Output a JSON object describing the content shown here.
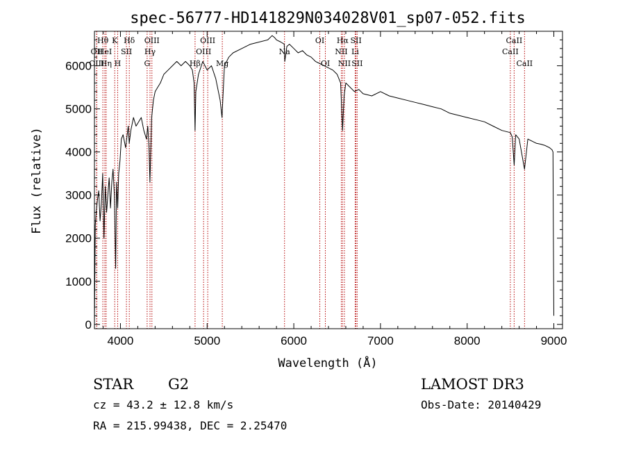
{
  "chart_data": {
    "type": "line",
    "title": "spec-56777-HD141829N034028V01_sp07-052.fits",
    "xlabel": "Wavelength (Å)",
    "ylabel": "Flux (relative)",
    "xlim": [
      3700,
      9100
    ],
    "ylim": [
      -100,
      6800
    ],
    "xticks": [
      4000,
      5000,
      6000,
      7000,
      8000,
      9000
    ],
    "yticks": [
      0,
      1000,
      2000,
      3000,
      4000,
      5000,
      6000
    ],
    "grid": false,
    "series": [
      {
        "color": "#000000",
        "x": [
          3700,
          3710,
          3720,
          3735,
          3750,
          3765,
          3780,
          3795,
          3810,
          3825,
          3840,
          3855,
          3870,
          3885,
          3900,
          3915,
          3930,
          3945,
          3955,
          3968,
          3980,
          3995,
          4010,
          4030,
          4060,
          4090,
          4101,
          4120,
          4150,
          4180,
          4210,
          4240,
          4270,
          4300,
          4315,
          4330,
          4340,
          4360,
          4380,
          4400,
          4430,
          4460,
          4500,
          4550,
          4600,
          4650,
          4700,
          4750,
          4800,
          4830,
          4850,
          4861,
          4870,
          4900,
          4950,
          5000,
          5050,
          5100,
          5150,
          5172,
          5183,
          5200,
          5250,
          5300,
          5400,
          5500,
          5600,
          5700,
          5750,
          5780,
          5800,
          5850,
          5890,
          5896,
          5920,
          5950,
          6000,
          6050,
          6100,
          6150,
          6200,
          6250,
          6300,
          6350,
          6400,
          6450,
          6500,
          6540,
          6563,
          6580,
          6600,
          6650,
          6700,
          6750,
          6800,
          6900,
          7000,
          7100,
          7200,
          7300,
          7400,
          7500,
          7600,
          7700,
          7800,
          7900,
          8000,
          8100,
          8200,
          8300,
          8400,
          8498,
          8520,
          8542,
          8560,
          8600,
          8662,
          8700,
          8750,
          8800,
          8850,
          8900,
          8950,
          8980,
          8990,
          8995,
          9000
        ],
        "y": [
          0,
          2300,
          2600,
          2900,
          3100,
          2400,
          2800,
          3500,
          2000,
          3200,
          2600,
          3000,
          3400,
          2700,
          3300,
          3600,
          3000,
          1300,
          3300,
          2700,
          3500,
          3800,
          4300,
          4400,
          4100,
          4600,
          4200,
          4500,
          4800,
          4600,
          4700,
          4800,
          4500,
          4300,
          4600,
          4100,
          3300,
          4800,
          5200,
          5400,
          5500,
          5600,
          5800,
          5900,
          6000,
          6100,
          6000,
          6100,
          6000,
          5900,
          5600,
          4500,
          5400,
          5800,
          6100,
          5900,
          6000,
          5700,
          5200,
          4800,
          5300,
          6000,
          6200,
          6300,
          6400,
          6500,
          6550,
          6600,
          6700,
          6650,
          6600,
          6550,
          6500,
          6100,
          6450,
          6500,
          6400,
          6300,
          6350,
          6250,
          6200,
          6100,
          6050,
          6000,
          5950,
          5900,
          5800,
          5600,
          4500,
          5300,
          5600,
          5500,
          5400,
          5450,
          5350,
          5300,
          5400,
          5300,
          5250,
          5200,
          5150,
          5100,
          5050,
          5000,
          4900,
          4850,
          4800,
          4750,
          4700,
          4600,
          4500,
          4450,
          4350,
          3700,
          4400,
          4300,
          3600,
          4300,
          4250,
          4200,
          4180,
          4150,
          4100,
          4050,
          4000,
          2000,
          200
        ]
      }
    ],
    "spectral_lines": [
      {
        "label": "Hθ",
        "wavelength": 3797,
        "row": 1
      },
      {
        "label": "OII",
        "wavelength": 3727,
        "row": 2
      },
      {
        "label": "OIII",
        "wavelength": 3726,
        "row": 3
      },
      {
        "label": "HeI",
        "wavelength": 3820,
        "row": 2
      },
      {
        "label": "Hη",
        "wavelength": 3835,
        "row": 3
      },
      {
        "label": "K",
        "wavelength": 3934,
        "row": 1
      },
      {
        "label": "SII",
        "wavelength": 4069,
        "row": 2
      },
      {
        "label": "H",
        "wavelength": 3968,
        "row": 3
      },
      {
        "label": "Hδ",
        "wavelength": 4102,
        "row": 1
      },
      {
        "label": "OIII",
        "wavelength": 4363,
        "row": 1
      },
      {
        "label": "Hγ",
        "wavelength": 4341,
        "row": 2
      },
      {
        "label": "G",
        "wavelength": 4308,
        "row": 3
      },
      {
        "label": "Hβ",
        "wavelength": 4861,
        "row": 3
      },
      {
        "label": "OIII",
        "wavelength": 5007,
        "row": 1
      },
      {
        "label": "OIII",
        "wavelength": 4959,
        "row": 2
      },
      {
        "label": "Mg",
        "wavelength": 5175,
        "row": 3
      },
      {
        "label": "Na",
        "wavelength": 5893,
        "row": 2
      },
      {
        "label": "OI",
        "wavelength": 6300,
        "row": 1
      },
      {
        "label": "OI",
        "wavelength": 6364,
        "row": 3
      },
      {
        "label": "Hα",
        "wavelength": 6563,
        "row": 1
      },
      {
        "label": "SII",
        "wavelength": 6717,
        "row": 1
      },
      {
        "label": "NII",
        "wavelength": 6548,
        "row": 2
      },
      {
        "label": "Li",
        "wavelength": 6708,
        "row": 2
      },
      {
        "label": "NII",
        "wavelength": 6584,
        "row": 3
      },
      {
        "label": "SII",
        "wavelength": 6731,
        "row": 3
      },
      {
        "label": "CaII",
        "wavelength": 8542,
        "row": 1
      },
      {
        "label": "CaII",
        "wavelength": 8498,
        "row": 2
      },
      {
        "label": "CaII",
        "wavelength": 8662,
        "row": 3
      }
    ],
    "line_color": "#b40000"
  },
  "info": {
    "class_label": "STAR",
    "subclass": "G2",
    "cz": "cz = 43.2 ± 12.8 km/s",
    "radec": "RA = 215.99438, DEC =   2.25470",
    "survey": "LAMOST DR3",
    "obs_date": "Obs-Date: 20140429"
  }
}
